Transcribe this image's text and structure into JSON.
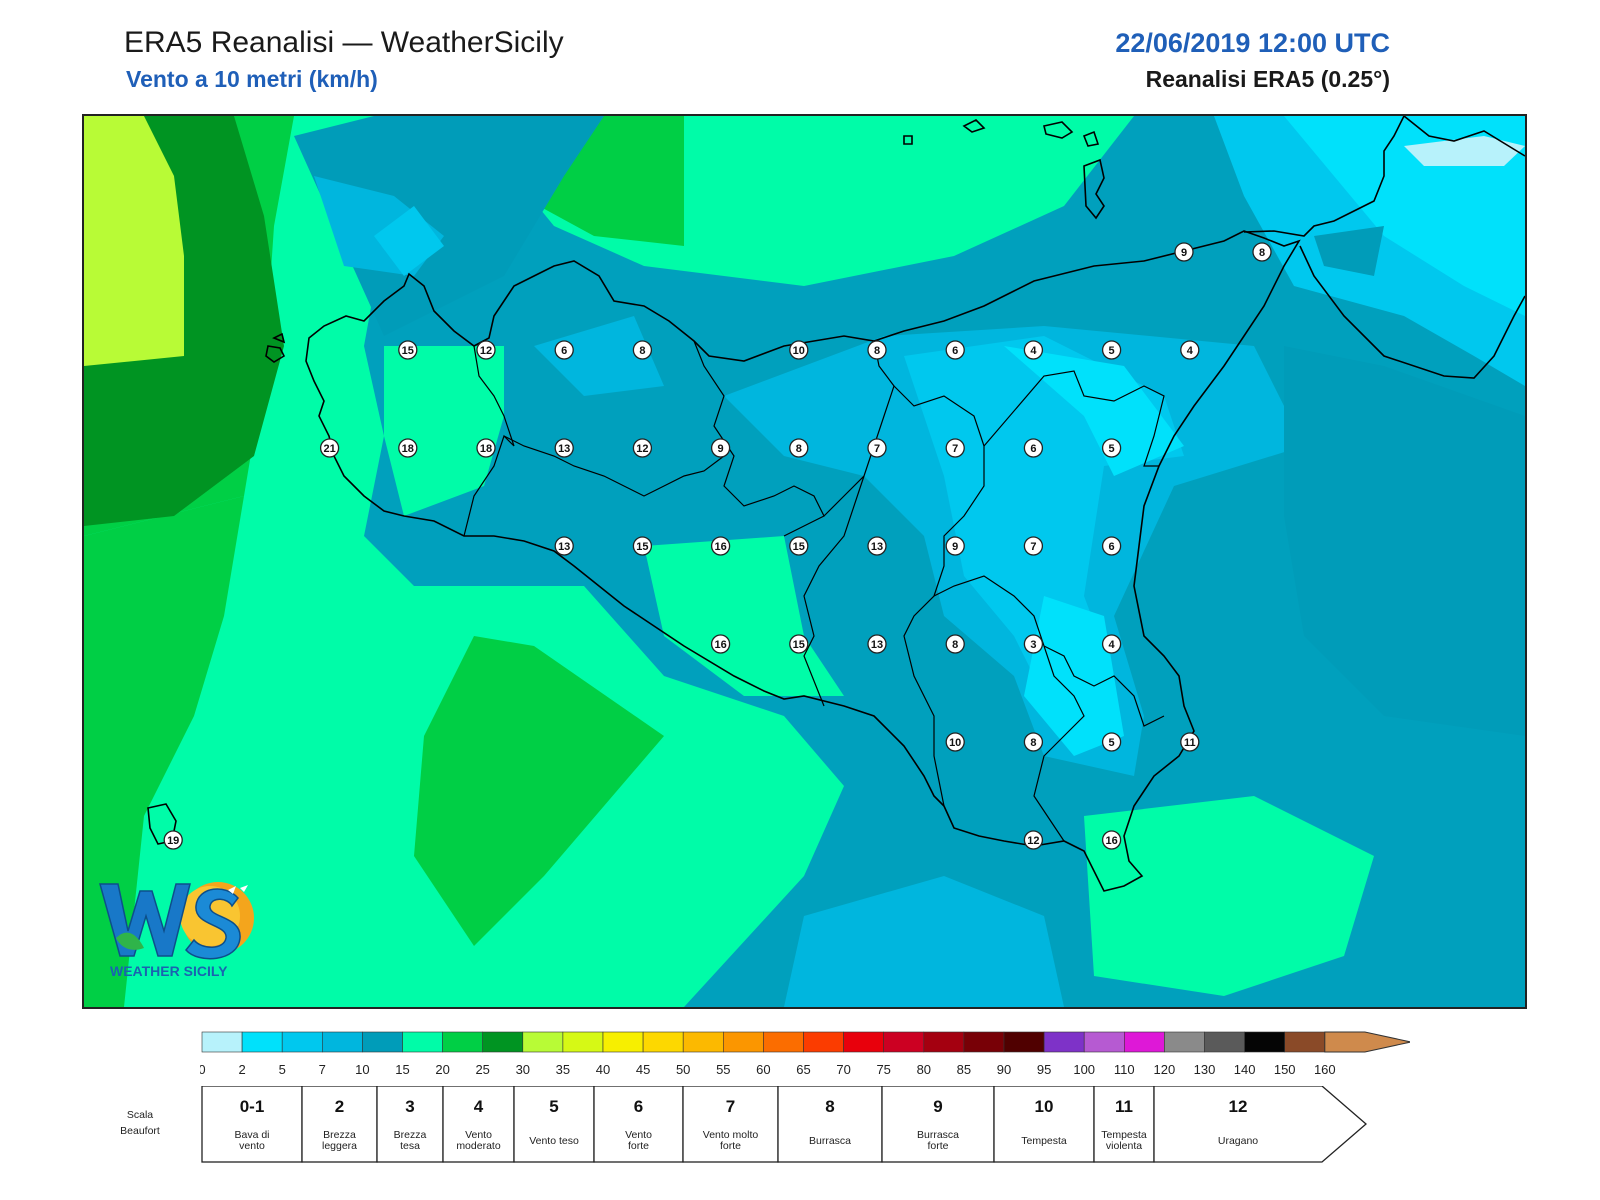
{
  "header": {
    "title": "ERA5 Reanalisi — WeatherSicily",
    "subtitle": "Vento a 10 metri (km/h)",
    "datetime": "22/06/2019 12:00 UTC",
    "source": "Reanalisi ERA5 (0.25°)"
  },
  "logo": {
    "letters": "WS",
    "name": "WEATHER SICILY"
  },
  "stations": [
    {
      "value": "15",
      "col": 4,
      "row": 1
    },
    {
      "value": "12",
      "col": 5,
      "row": 1
    },
    {
      "value": "6",
      "col": 6,
      "row": 1
    },
    {
      "value": "8",
      "col": 7,
      "row": 1
    },
    {
      "value": "10",
      "col": 9,
      "row": 1
    },
    {
      "value": "8",
      "col": 10,
      "row": 1
    },
    {
      "value": "6",
      "col": 11,
      "row": 1
    },
    {
      "value": "4",
      "col": 12,
      "row": 1
    },
    {
      "value": "5",
      "col": 13,
      "row": 1
    },
    {
      "value": "4",
      "col": 14,
      "row": 1
    },
    {
      "value": "9",
      "col": 14,
      "row": 0
    },
    {
      "value": "8",
      "col": 15,
      "row": 0
    },
    {
      "value": "21",
      "col": 3,
      "row": 2
    },
    {
      "value": "18",
      "col": 4,
      "row": 2
    },
    {
      "value": "18",
      "col": 5,
      "row": 2
    },
    {
      "value": "13",
      "col": 6,
      "row": 2
    },
    {
      "value": "12",
      "col": 7,
      "row": 2
    },
    {
      "value": "9",
      "col": 8,
      "row": 2
    },
    {
      "value": "8",
      "col": 9,
      "row": 2
    },
    {
      "value": "7",
      "col": 10,
      "row": 2
    },
    {
      "value": "7",
      "col": 11,
      "row": 2
    },
    {
      "value": "6",
      "col": 12,
      "row": 2
    },
    {
      "value": "5",
      "col": 13,
      "row": 2
    },
    {
      "value": "13",
      "col": 6,
      "row": 3
    },
    {
      "value": "15",
      "col": 7,
      "row": 3
    },
    {
      "value": "16",
      "col": 8,
      "row": 3
    },
    {
      "value": "15",
      "col": 9,
      "row": 3
    },
    {
      "value": "13",
      "col": 10,
      "row": 3
    },
    {
      "value": "9",
      "col": 11,
      "row": 3
    },
    {
      "value": "7",
      "col": 12,
      "row": 3
    },
    {
      "value": "6",
      "col": 13,
      "row": 3
    },
    {
      "value": "16",
      "col": 8,
      "row": 4
    },
    {
      "value": "15",
      "col": 9,
      "row": 4
    },
    {
      "value": "13",
      "col": 10,
      "row": 4
    },
    {
      "value": "8",
      "col": 11,
      "row": 4
    },
    {
      "value": "3",
      "col": 12,
      "row": 4
    },
    {
      "value": "4",
      "col": 13,
      "row": 4
    },
    {
      "value": "10",
      "col": 11,
      "row": 5
    },
    {
      "value": "8",
      "col": 12,
      "row": 5
    },
    {
      "value": "5",
      "col": 13,
      "row": 5
    },
    {
      "value": "11",
      "col": 14,
      "row": 5
    },
    {
      "value": "12",
      "col": 12,
      "row": 6
    },
    {
      "value": "16",
      "col": 13,
      "row": 6
    },
    {
      "value": "19",
      "col": 1,
      "row": 6
    }
  ],
  "colorbar": {
    "ticks": [
      "0",
      "2",
      "5",
      "7",
      "10",
      "15",
      "20",
      "25",
      "30",
      "35",
      "40",
      "45",
      "50",
      "55",
      "60",
      "65",
      "70",
      "75",
      "80",
      "85",
      "90",
      "95",
      "100",
      "110",
      "120",
      "130",
      "140",
      "150",
      "160"
    ],
    "colors": [
      "#b7f2fb",
      "#00e1fb",
      "#00c8ee",
      "#00b6de",
      "#009cb9",
      "#00fca8",
      "#00cf45",
      "#009422",
      "#b8fb36",
      "#d6f915",
      "#f7ef00",
      "#fdd800",
      "#fcb900",
      "#fb9600",
      "#fb6d00",
      "#fb3c00",
      "#e8000c",
      "#cc0022",
      "#a40010",
      "#780006",
      "#500000",
      "#7e32c8",
      "#b65ad2",
      "#de18d7",
      "#8a8a8a",
      "#5a5a5a",
      "#050505",
      "#8a4a28",
      "#cf8a4c"
    ]
  },
  "beaufort": {
    "label": "Scala Beaufort",
    "scale": [
      {
        "force": "0-1",
        "desc": "Bava di vento"
      },
      {
        "force": "2",
        "desc": "Brezza leggera"
      },
      {
        "force": "3",
        "desc": "Brezza tesa"
      },
      {
        "force": "4",
        "desc": "Vento moderato"
      },
      {
        "force": "5",
        "desc": "Vento teso"
      },
      {
        "force": "6",
        "desc": "Vento forte"
      },
      {
        "force": "7",
        "desc": "Vento molto forte"
      },
      {
        "force": "8",
        "desc": "Burrasca"
      },
      {
        "force": "9",
        "desc": "Burrasca forte"
      },
      {
        "force": "10",
        "desc": "Tempesta"
      },
      {
        "force": "11",
        "desc": "Tempesta violenta"
      },
      {
        "force": "12",
        "desc": "Uragano"
      }
    ]
  }
}
